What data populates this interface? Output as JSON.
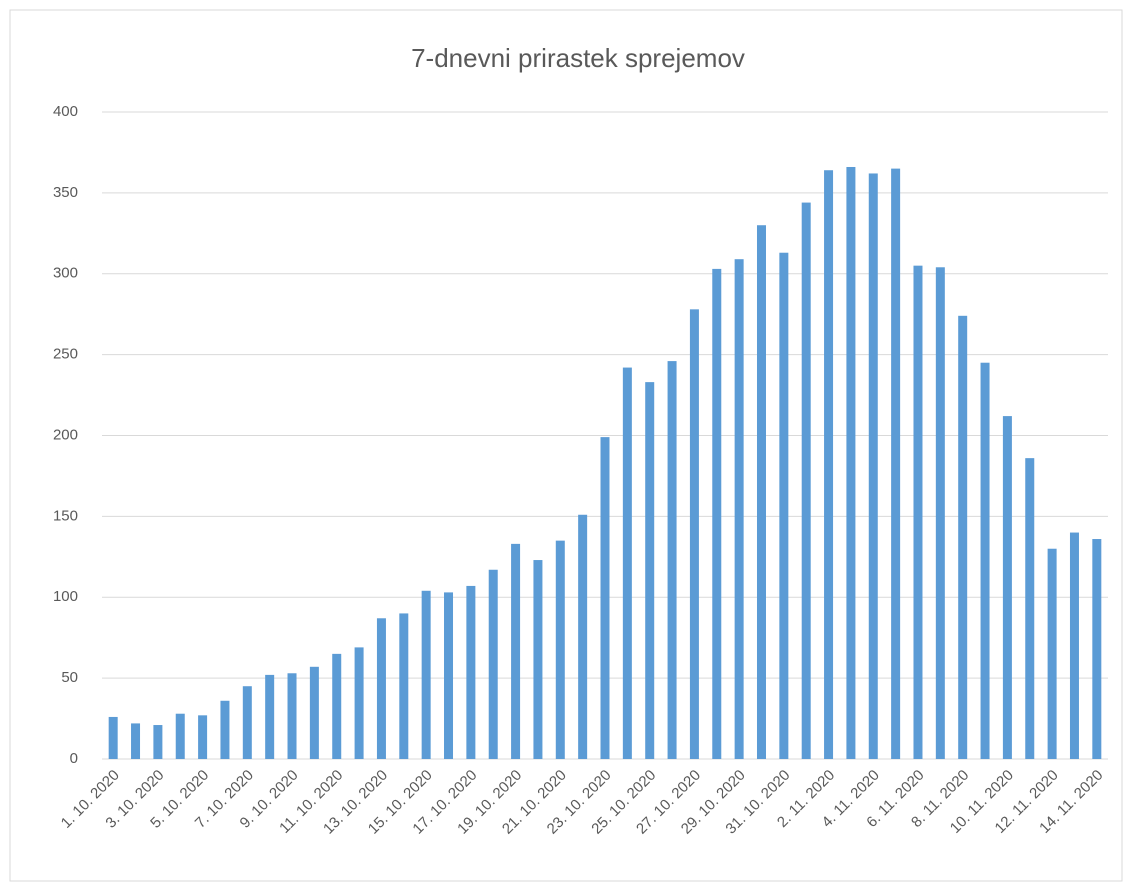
{
  "chart_data": {
    "type": "bar",
    "title": "7-dnevni prirastek sprejemov",
    "categories": [
      "1. 10. 2020",
      null,
      "3. 10. 2020",
      null,
      "5. 10. 2020",
      null,
      "7. 10. 2020",
      null,
      "9. 10. 2020",
      null,
      "11. 10. 2020",
      null,
      "13. 10. 2020",
      null,
      "15. 10. 2020",
      null,
      "17. 10. 2020",
      null,
      "19. 10. 2020",
      null,
      "21. 10. 2020",
      null,
      "23. 10. 2020",
      null,
      "25. 10. 2020",
      null,
      "27. 10. 2020",
      null,
      "29. 10. 2020",
      null,
      "31. 10. 2020",
      null,
      "2. 11. 2020",
      null,
      "4. 11. 2020",
      null,
      "6. 11. 2020",
      null,
      "8. 11. 2020",
      null,
      "10. 11. 2020",
      null,
      "12. 11. 2020",
      null,
      "14. 11. 2020"
    ],
    "values": [
      26,
      22,
      21,
      28,
      27,
      36,
      45,
      52,
      53,
      57,
      65,
      69,
      87,
      90,
      104,
      103,
      107,
      117,
      133,
      123,
      135,
      151,
      199,
      242,
      233,
      246,
      278,
      303,
      309,
      330,
      313,
      344,
      364,
      366,
      362,
      365,
      305,
      304,
      274,
      245,
      212,
      186,
      130,
      140,
      136
    ],
    "color": "#5b9bd5",
    "ylim": [
      0,
      400
    ],
    "yticks": [
      0,
      50,
      100,
      150,
      200,
      250,
      300,
      350,
      400
    ],
    "grid": true
  }
}
